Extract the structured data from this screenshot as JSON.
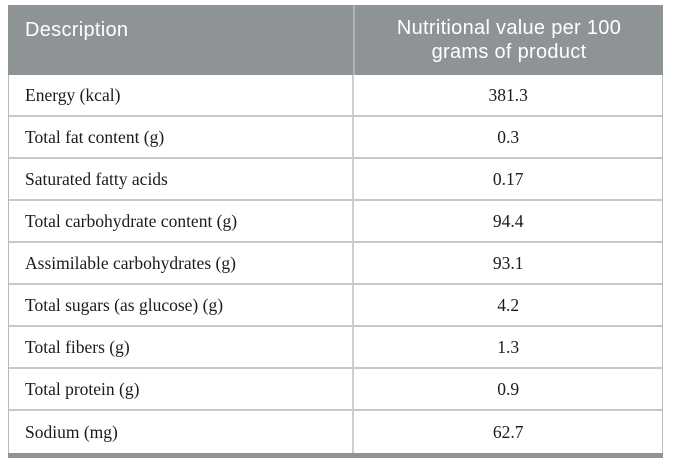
{
  "table": {
    "header": {
      "description_label": "Description",
      "value_label": "Nutritional value per 100 grams of product"
    },
    "rows": [
      {
        "description": "Energy (kcal)",
        "value": "381.3"
      },
      {
        "description": "Total fat content (g)",
        "value": "0.3"
      },
      {
        "description": "Saturated fatty acids",
        "value": "0.17"
      },
      {
        "description": "Total carbohydrate content (g)",
        "value": "94.4"
      },
      {
        "description": "Assimilable carbohydrates (g)",
        "value": "93.1"
      },
      {
        "description": "Total sugars (as glucose) (g)",
        "value": "4.2"
      },
      {
        "description": "Total fibers (g)",
        "value": "1.3"
      },
      {
        "description": "Total protein (g)",
        "value": "0.9"
      },
      {
        "description": "Sodium (mg)",
        "value": "62.7"
      }
    ],
    "colors": {
      "header_bg": "#8e9396",
      "header_text": "#ffffff",
      "row_border": "#c7cacc",
      "body_text": "#1b1b1b"
    }
  }
}
